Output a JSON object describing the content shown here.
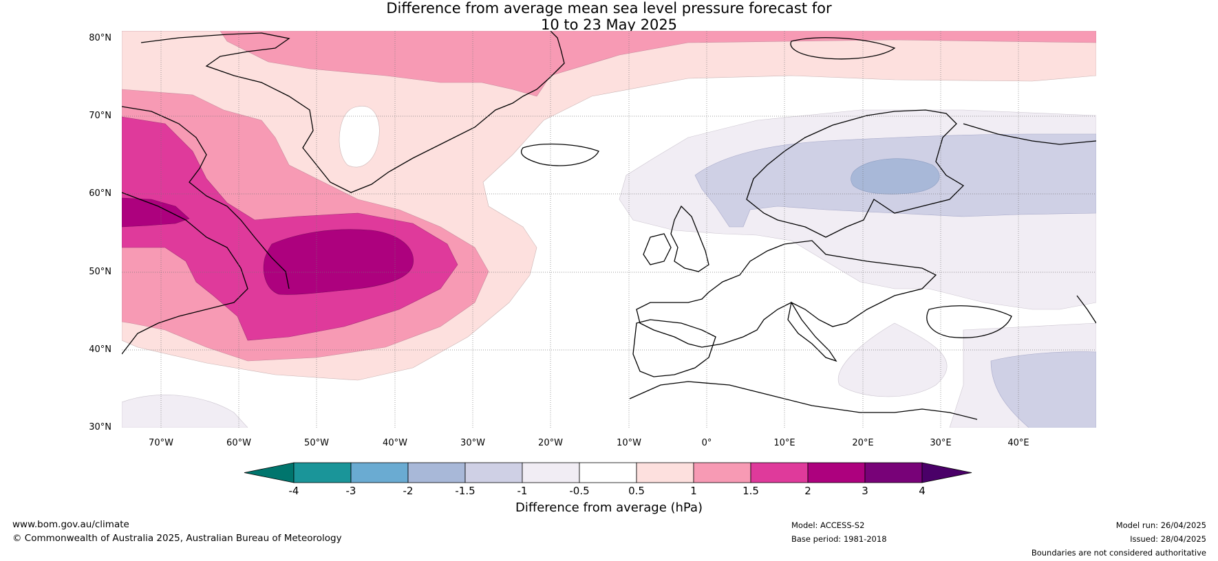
{
  "title": {
    "line1": "Difference from average mean sea level pressure forecast for",
    "line2": "10 to 23 May 2025"
  },
  "axes": {
    "latitudes": [
      "80°N",
      "70°N",
      "60°N",
      "50°N",
      "40°N",
      "30°N"
    ],
    "longitudes": [
      "70°W",
      "60°W",
      "50°W",
      "40°W",
      "30°W",
      "20°W",
      "10°W",
      "0°",
      "10°E",
      "20°E",
      "30°E",
      "40°E"
    ]
  },
  "colorbar": {
    "title": "Difference from average (hPa)",
    "ticks": [
      "-4",
      "-3",
      "-2",
      "-1.5",
      "-1",
      "-0.5",
      "0.5",
      "1",
      "1.5",
      "2",
      "3",
      "4"
    ],
    "colors": [
      "#00756d",
      "#1a9599",
      "#6aabd2",
      "#a8b8d8",
      "#cfd0e5",
      "#f1edf4",
      "#ffffff",
      "#fde0de",
      "#f79ab4",
      "#df3a9b",
      "#ad017e",
      "#780278",
      "#4a0068"
    ]
  },
  "footer": {
    "website": "www.bom.gov.au/climate",
    "copyright": "© Commonwealth of Australia 2025, Australian Bureau of Meteorology",
    "model": "Model: ACCESS-S2",
    "base_period": "Base period: 1981-2018",
    "model_run": "Model run: 26/04/2025",
    "issued": "Issued: 28/04/2025",
    "disclaimer": "Boundaries are not considered authoritative"
  }
}
